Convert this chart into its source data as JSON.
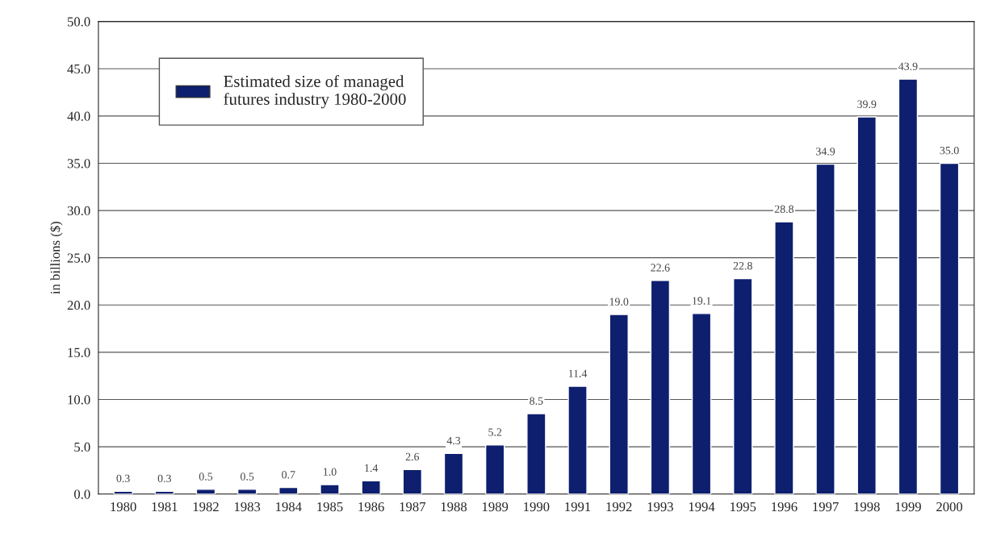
{
  "chart_data": {
    "type": "bar",
    "ylabel": "in billions ($)",
    "categories": [
      "1980",
      "1981",
      "1982",
      "1983",
      "1984",
      "1985",
      "1986",
      "1987",
      "1988",
      "1989",
      "1990",
      "1991",
      "1992",
      "1993",
      "1994",
      "1995",
      "1996",
      "1997",
      "1998",
      "1999",
      "2000"
    ],
    "series": [
      {
        "name": "Estimated size of managed\nfutures industry 1980-2000",
        "color": "#0d1f6e",
        "values": [
          0.3,
          0.3,
          0.5,
          0.5,
          0.7,
          1.0,
          1.4,
          2.6,
          4.3,
          5.2,
          8.5,
          11.4,
          19.0,
          22.6,
          19.1,
          22.8,
          28.8,
          34.9,
          39.9,
          43.9,
          35.0
        ],
        "value_labels": [
          "0.3",
          "0.3",
          "0.5",
          "0.5",
          "0.7",
          "1.0",
          "1.4",
          "2.6",
          "4.3",
          "5.2",
          "8.5",
          "11.4",
          "19.0",
          "22.6",
          "19.1",
          "22.8",
          "28.8",
          "34.9",
          "39.9",
          "43.9",
          "35.0"
        ]
      }
    ],
    "ylim": [
      0,
      50
    ],
    "yticks": [
      {
        "value": 0,
        "label": "0.0"
      },
      {
        "value": 5,
        "label": "5.0"
      },
      {
        "value": 10,
        "label": "10.0"
      },
      {
        "value": 15,
        "label": "15.0"
      },
      {
        "value": 20,
        "label": "20.0"
      },
      {
        "value": 25,
        "label": "25.0"
      },
      {
        "value": 30,
        "label": "30.0"
      },
      {
        "value": 35,
        "label": "35.0"
      },
      {
        "value": 40,
        "label": "40.0"
      },
      {
        "value": 45,
        "label": "45.0"
      },
      {
        "value": 50,
        "label": "50.0"
      }
    ],
    "grid": "y",
    "legend": "top left"
  }
}
